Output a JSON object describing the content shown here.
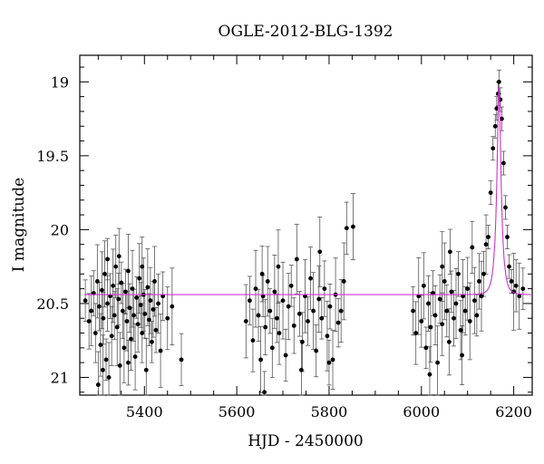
{
  "chart_data": {
    "type": "scatter",
    "title": "OGLE-2012-BLG-1392",
    "xlabel": "HJD - 2450000",
    "ylabel": "I magnitude",
    "xlim": [
      5260,
      6240
    ],
    "ylim": [
      21.12,
      18.82
    ],
    "y_inverted": true,
    "xticks": [
      5400,
      5600,
      5800,
      6000,
      6200
    ],
    "xtick_labels": [
      "5400",
      "5600",
      "5800",
      "6000",
      "6200"
    ],
    "yticks": [
      19,
      19.5,
      20,
      20.5,
      21
    ],
    "ytick_labels": [
      "19",
      "19.5",
      "20",
      "20.5",
      "21"
    ],
    "grid": false,
    "colors": {
      "points": "#000000",
      "errorbars": "#555555",
      "model": "#cc33cc"
    },
    "series": [
      {
        "kind": "points",
        "points": [
          [
            5272,
            20.48
          ],
          [
            5280,
            20.62
          ],
          [
            5285,
            20.55
          ],
          [
            5290,
            20.43
          ],
          [
            5294,
            20.7
          ],
          [
            5298,
            20.35
          ],
          [
            5302,
            20.52
          ],
          [
            5305,
            20.78
          ],
          [
            5308,
            20.41
          ],
          [
            5311,
            20.6
          ],
          [
            5314,
            20.3
          ],
          [
            5317,
            20.88
          ],
          [
            5320,
            20.5
          ],
          [
            5323,
            21.0
          ],
          [
            5326,
            20.45
          ],
          [
            5329,
            20.72
          ],
          [
            5332,
            20.38
          ],
          [
            5335,
            20.58
          ],
          [
            5338,
            20.25
          ],
          [
            5341,
            20.66
          ],
          [
            5344,
            20.47
          ],
          [
            5347,
            20.92
          ],
          [
            5350,
            20.36
          ],
          [
            5353,
            20.55
          ],
          [
            5356,
            20.8
          ],
          [
            5359,
            20.42
          ],
          [
            5362,
            20.62
          ],
          [
            5365,
            20.28
          ],
          [
            5368,
            20.53
          ],
          [
            5371,
            20.74
          ],
          [
            5374,
            20.4
          ],
          [
            5377,
            20.58
          ],
          [
            5380,
            20.86
          ],
          [
            5383,
            20.46
          ],
          [
            5386,
            20.64
          ],
          [
            5389,
            20.33
          ],
          [
            5392,
            20.51
          ],
          [
            5395,
            20.7
          ],
          [
            5398,
            20.44
          ],
          [
            5401,
            20.57
          ],
          [
            5404,
            20.95
          ],
          [
            5407,
            20.39
          ],
          [
            5410,
            20.61
          ],
          [
            5413,
            20.48
          ],
          [
            5416,
            20.76
          ],
          [
            5419,
            20.54
          ],
          [
            5422,
            20.35
          ],
          [
            5425,
            20.68
          ],
          [
            5430,
            20.5
          ],
          [
            5435,
            20.82
          ],
          [
            5440,
            20.45
          ],
          [
            5450,
            20.6
          ],
          [
            5460,
            20.52
          ],
          [
            5480,
            20.88
          ],
          [
            5300,
            21.05
          ],
          [
            5320,
            20.2
          ],
          [
            5345,
            20.18
          ],
          [
            5310,
            20.95
          ],
          [
            5365,
            20.9
          ],
          [
            5395,
            20.25
          ],
          [
            5620,
            20.62
          ],
          [
            5628,
            20.48
          ],
          [
            5635,
            20.75
          ],
          [
            5641,
            20.4
          ],
          [
            5647,
            20.58
          ],
          [
            5652,
            20.88
          ],
          [
            5657,
            20.45
          ],
          [
            5662,
            20.66
          ],
          [
            5667,
            20.35
          ],
          [
            5672,
            20.55
          ],
          [
            5677,
            20.8
          ],
          [
            5682,
            20.42
          ],
          [
            5687,
            20.6
          ],
          [
            5692,
            20.7
          ],
          [
            5700,
            20.48
          ],
          [
            5706,
            20.85
          ],
          [
            5712,
            20.52
          ],
          [
            5718,
            20.38
          ],
          [
            5724,
            20.65
          ],
          [
            5730,
            20.2
          ],
          [
            5736,
            20.57
          ],
          [
            5742,
            20.76
          ],
          [
            5748,
            20.45
          ],
          [
            5754,
            20.62
          ],
          [
            5760,
            20.33
          ],
          [
            5766,
            20.55
          ],
          [
            5772,
            20.82
          ],
          [
            5778,
            20.47
          ],
          [
            5784,
            20.6
          ],
          [
            5790,
            20.4
          ],
          [
            5796,
            20.72
          ],
          [
            5802,
            20.52
          ],
          [
            5808,
            20.88
          ],
          [
            5814,
            20.44
          ],
          [
            5820,
            20.63
          ],
          [
            5826,
            20.55
          ],
          [
            5832,
            20.35
          ],
          [
            5838,
            19.99
          ],
          [
            5852,
            19.98
          ],
          [
            5660,
            21.1
          ],
          [
            5655,
            20.3
          ],
          [
            5780,
            20.15
          ],
          [
            5800,
            20.9
          ],
          [
            5740,
            20.95
          ],
          [
            5690,
            20.25
          ],
          [
            5982,
            20.55
          ],
          [
            5988,
            20.7
          ],
          [
            5994,
            20.45
          ],
          [
            6000,
            20.62
          ],
          [
            6005,
            20.38
          ],
          [
            6010,
            20.8
          ],
          [
            6015,
            20.5
          ],
          [
            6020,
            20.66
          ],
          [
            6025,
            20.43
          ],
          [
            6030,
            20.58
          ],
          [
            6035,
            20.9
          ],
          [
            6040,
            20.47
          ],
          [
            6045,
            20.64
          ],
          [
            6050,
            20.35
          ],
          [
            6055,
            20.55
          ],
          [
            6060,
            20.76
          ],
          [
            6065,
            20.42
          ],
          [
            6070,
            20.6
          ],
          [
            6075,
            20.5
          ],
          [
            6080,
            20.3
          ],
          [
            6085,
            20.68
          ],
          [
            6090,
            20.45
          ],
          [
            6095,
            20.55
          ],
          [
            6100,
            20.4
          ],
          [
            6105,
            20.62
          ],
          [
            6110,
            20.12
          ],
          [
            6115,
            20.48
          ],
          [
            6120,
            20.58
          ],
          [
            6125,
            20.35
          ],
          [
            6130,
            20.45
          ],
          [
            6135,
            20.3
          ],
          [
            6140,
            20.1
          ],
          [
            6145,
            20.05
          ],
          [
            6150,
            19.75
          ],
          [
            6155,
            19.45
          ],
          [
            6160,
            19.3
          ],
          [
            6163,
            19.18
          ],
          [
            6166,
            19.08
          ],
          [
            6168,
            19.0
          ],
          [
            6171,
            19.12
          ],
          [
            6174,
            19.25
          ],
          [
            6178,
            19.55
          ],
          [
            6182,
            19.85
          ],
          [
            6186,
            20.05
          ],
          [
            6190,
            20.25
          ],
          [
            6195,
            20.35
          ],
          [
            6200,
            20.42
          ],
          [
            6205,
            20.38
          ],
          [
            6212,
            20.45
          ],
          [
            6220,
            20.4
          ],
          [
            6018,
            20.98
          ],
          [
            6045,
            20.25
          ],
          [
            6062,
            20.15
          ],
          [
            6088,
            20.85
          ]
        ]
      },
      {
        "kind": "model_curve",
        "baseline": 20.44,
        "peak": 19.03,
        "t0": 6168,
        "tE": 10
      }
    ]
  }
}
